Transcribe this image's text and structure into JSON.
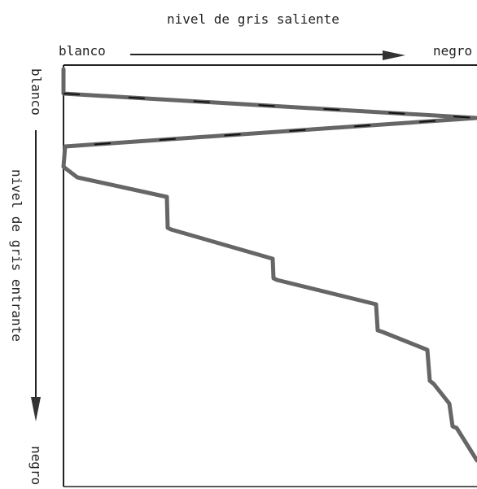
{
  "diagram": {
    "title": "nivel de gris saliente",
    "x_axis": {
      "start_label": "blanco",
      "end_label": "negro"
    },
    "y_axis": {
      "start_label": "blanco",
      "label": "nivel de gris entrante",
      "end_label": "negro"
    },
    "colors": {
      "curve": "#666666",
      "axis": "#222222"
    }
  }
}
